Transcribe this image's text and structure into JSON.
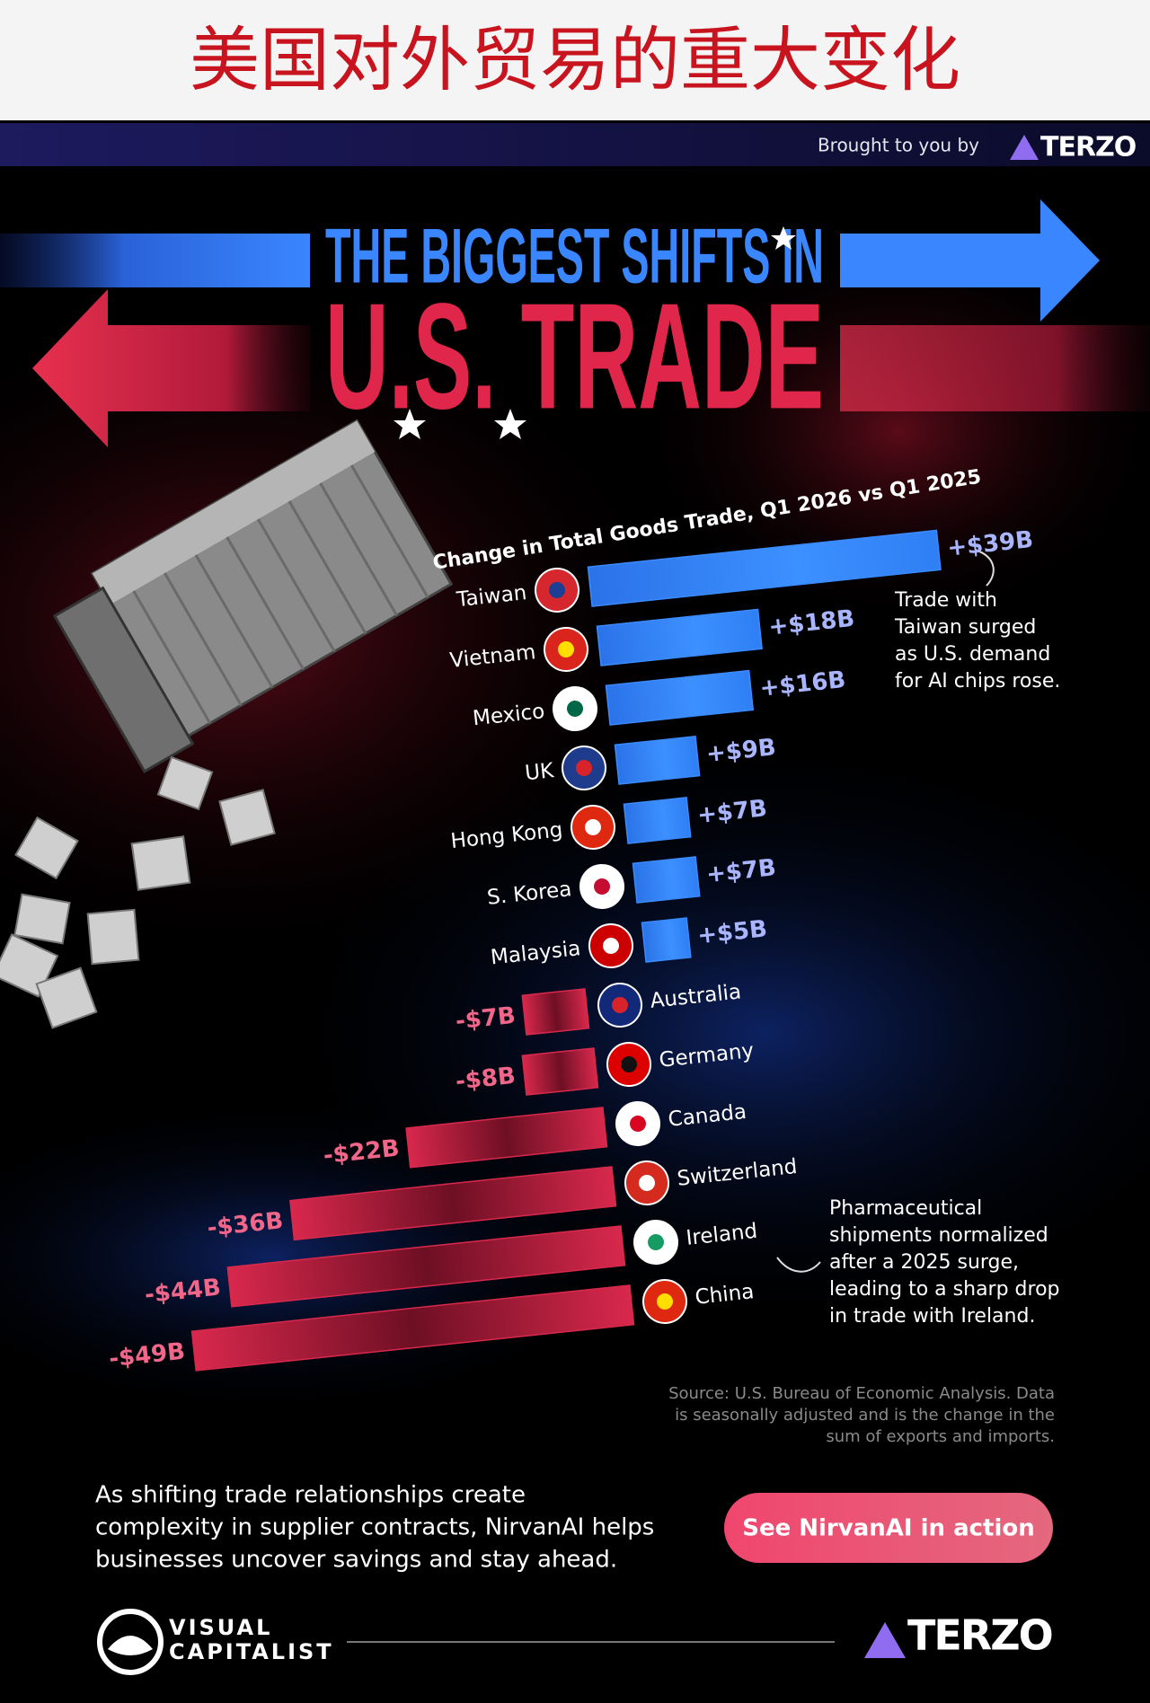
{
  "banner": {
    "title": "美国对外贸易的重大变化"
  },
  "sponsor": {
    "text": "Brought to you by",
    "brand": "TERZO"
  },
  "chart_data": {
    "type": "bar",
    "title_lines": [
      "THE BIGGEST SHIFTS IN",
      "U.S. TRADE"
    ],
    "subtitle": "Change in Total Goods Trade, Q1 2026 vs Q1 2025",
    "categories": [
      "Taiwan",
      "Vietnam",
      "Mexico",
      "UK",
      "Hong Kong",
      "S. Korea",
      "Malaysia",
      "Australia",
      "Germany",
      "Canada",
      "Switzerland",
      "Ireland",
      "China"
    ],
    "values": [
      39,
      18,
      16,
      9,
      7,
      7,
      5,
      -7,
      -8,
      -22,
      -36,
      -44,
      -49
    ],
    "value_labels": [
      "+$39B",
      "+$18B",
      "+$16B",
      "+$9B",
      "+$7B",
      "+$7B",
      "+$5B",
      "-$7B",
      "-$8B",
      "-$22B",
      "-$36B",
      "-$44B",
      "-$49B"
    ],
    "colors": {
      "positive": "#3a8bff",
      "negative": "#d8284c"
    },
    "annotations": [
      {
        "lines": [
          "Trade with",
          "Taiwan surged",
          "as U.S. demand",
          "for AI chips rose."
        ]
      },
      {
        "lines": [
          "Pharmaceutical",
          "shipments normalized",
          "after a 2025 surge,",
          "leading to a sharp drop",
          "in trade with Ireland."
        ]
      }
    ],
    "source_lines": [
      "Source: U.S. Bureau of Economic Analysis. Data",
      "is seasonally adjusted and is the change in the",
      "sum of exports and imports."
    ]
  },
  "footer": {
    "text_lines": [
      "As shifting trade relationships create",
      "complexity in supplier contracts, NirvanAI helps",
      "businesses uncover savings and stay ahead."
    ],
    "button": "See NirvanAI in action",
    "logo_lines": [
      "VISUAL",
      "CAPITALIST"
    ],
    "brand": "TERZO"
  }
}
